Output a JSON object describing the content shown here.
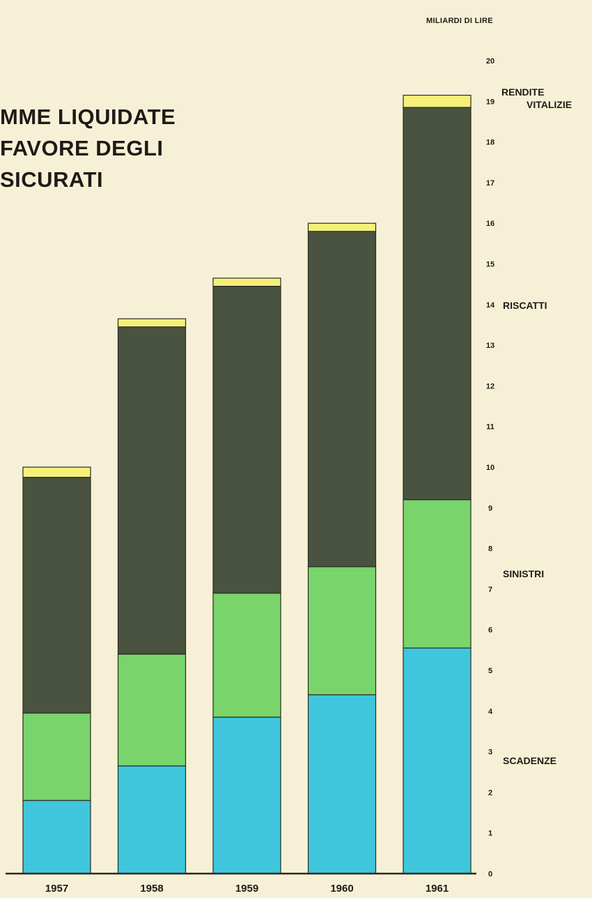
{
  "chart_data": {
    "type": "bar",
    "stacked": true,
    "title_lines": [
      "MME LIQUIDATE",
      "FAVORE DEGLI",
      "SICURATI"
    ],
    "unit_label": "MILIARDI DI LIRE",
    "categories": [
      "1957",
      "1958",
      "1959",
      "1960",
      "1961"
    ],
    "ylim": [
      0,
      20
    ],
    "yticks": [
      "0",
      "1",
      "2",
      "3",
      "4",
      "5",
      "6",
      "7",
      "8",
      "9",
      "10",
      "11",
      "12",
      "13",
      "14",
      "15",
      "16",
      "17",
      "18",
      "19",
      "20"
    ],
    "grid": false,
    "series": [
      {
        "name": "SCADENZE",
        "color": "#3fc6dc",
        "values": [
          1.8,
          2.65,
          3.85,
          4.4,
          5.55
        ]
      },
      {
        "name": "SINISTRI",
        "color": "#79d46b",
        "values": [
          2.15,
          2.75,
          3.05,
          3.15,
          3.65
        ]
      },
      {
        "name": "RISCATTI",
        "color": "#4a5240",
        "values": [
          5.8,
          8.05,
          7.55,
          8.25,
          9.65
        ]
      },
      {
        "name": "RENDITE VITALIZIE",
        "color": "#f5f07a",
        "values": [
          0.25,
          0.2,
          0.2,
          0.2,
          0.3
        ]
      }
    ],
    "series_labels": [
      {
        "line1": "SCADENZE",
        "line2": ""
      },
      {
        "line1": "SINISTRI",
        "line2": ""
      },
      {
        "line1": "RISCATTI",
        "line2": ""
      },
      {
        "line1": "RENDITE",
        "line2": "VITALIZIE"
      }
    ]
  }
}
